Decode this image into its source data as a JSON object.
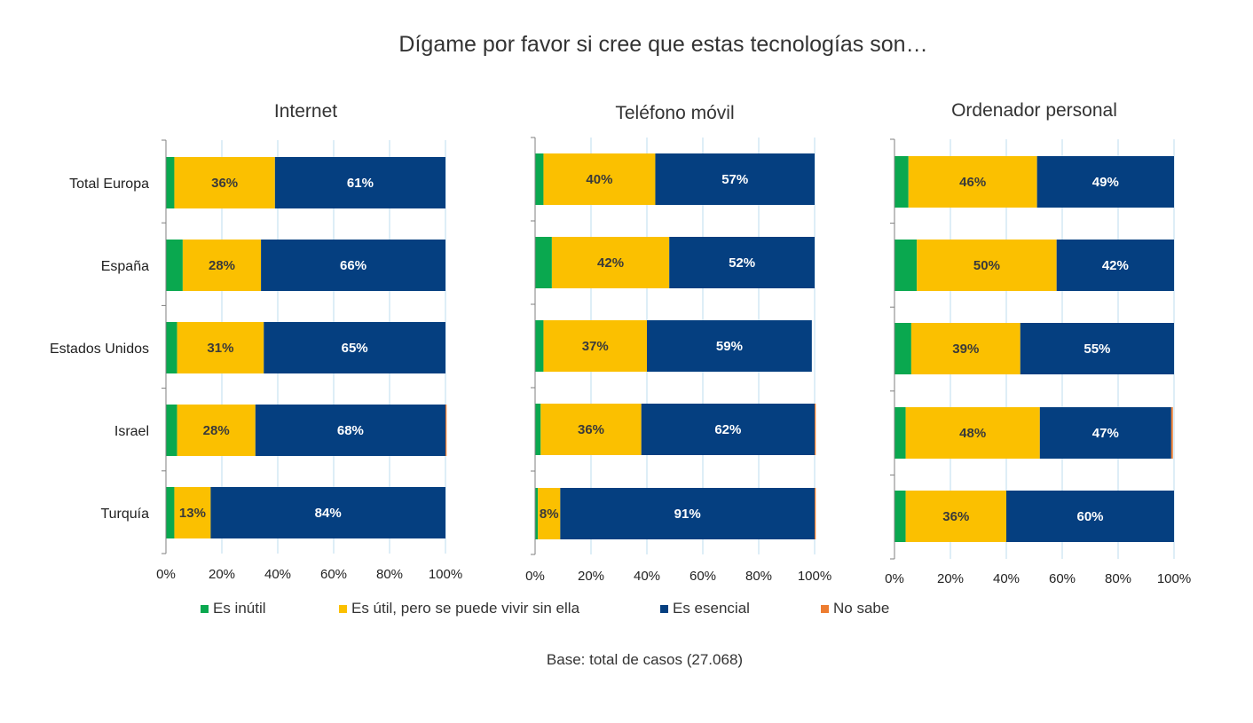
{
  "title": "Dígame por favor si cree que estas tecnologías son…",
  "footnote": "Base: total de casos (27.068)",
  "colors": {
    "inutil": "#0aa84f",
    "util": "#fbc000",
    "esencial": "#053f80",
    "no_sabe": "#ed7d31"
  },
  "legend": [
    {
      "label": "Es inútil",
      "color": "#0aa84f"
    },
    {
      "label": "Es útil, pero se puede vivir sin ella",
      "color": "#fbc000"
    },
    {
      "label": "Es esencial",
      "color": "#053f80"
    },
    {
      "label": "No sabe",
      "color": "#ed7d31"
    }
  ],
  "chart_data": [
    {
      "type": "bar",
      "orientation": "horizontal-stacked-100",
      "title": "Internet",
      "categories": [
        "Total Europa",
        "España",
        "Estados Unidos",
        "Israel",
        "Turquía"
      ],
      "xlim": [
        0,
        100
      ],
      "xticks": [
        "0%",
        "20%",
        "40%",
        "60%",
        "80%",
        "100%"
      ],
      "grid": true,
      "series": [
        {
          "name": "Es inútil",
          "values": [
            3,
            6,
            4,
            4,
            3
          ],
          "labels": [
            "",
            "",
            "",
            "",
            ""
          ]
        },
        {
          "name": "Es útil, pero se puede vivir sin ella",
          "values": [
            36,
            28,
            31,
            28,
            13
          ],
          "labels": [
            "36%",
            "28%",
            "31%",
            "28%",
            "13%"
          ]
        },
        {
          "name": "Es esencial",
          "values": [
            61,
            66,
            65,
            68,
            84
          ],
          "labels": [
            "61%",
            "66%",
            "65%",
            "68%",
            "84%"
          ]
        },
        {
          "name": "No sabe",
          "values": [
            0,
            0,
            0,
            0.4,
            0
          ],
          "labels": [
            "",
            "",
            "",
            "",
            ""
          ]
        }
      ]
    },
    {
      "type": "bar",
      "orientation": "horizontal-stacked-100",
      "title": "Teléfono móvil",
      "categories": [
        "Total Europa",
        "España",
        "Estados Unidos",
        "Israel",
        "Turquía"
      ],
      "xlim": [
        0,
        100
      ],
      "xticks": [
        "0%",
        "20%",
        "40%",
        "60%",
        "80%",
        "100%"
      ],
      "grid": true,
      "series": [
        {
          "name": "Es inútil",
          "values": [
            3,
            6,
            3,
            2,
            1
          ],
          "labels": [
            "",
            "",
            "",
            "",
            ""
          ]
        },
        {
          "name": "Es útil, pero se puede vivir sin ella",
          "values": [
            40,
            42,
            37,
            36,
            8
          ],
          "labels": [
            "40%",
            "42%",
            "37%",
            "36%",
            "8%"
          ]
        },
        {
          "name": "Es esencial",
          "values": [
            57,
            52,
            59,
            62,
            91
          ],
          "labels": [
            "57%",
            "52%",
            "59%",
            "62%",
            "91%"
          ]
        },
        {
          "name": "No sabe",
          "values": [
            0,
            0,
            0,
            0.4,
            0.4
          ],
          "labels": [
            "",
            "",
            "",
            "",
            ""
          ]
        }
      ]
    },
    {
      "type": "bar",
      "orientation": "horizontal-stacked-100",
      "title": "Ordenador personal",
      "categories": [
        "Total Europa",
        "España",
        "Estados Unidos",
        "Israel",
        "Turquía"
      ],
      "xlim": [
        0,
        100
      ],
      "xticks": [
        "0%",
        "20%",
        "40%",
        "60%",
        "80%",
        "100%"
      ],
      "grid": true,
      "series": [
        {
          "name": "Es inútil",
          "values": [
            5,
            8,
            6,
            4,
            4
          ],
          "labels": [
            "",
            "",
            "",
            "",
            ""
          ]
        },
        {
          "name": "Es útil, pero se puede vivir sin ella",
          "values": [
            46,
            50,
            39,
            48,
            36
          ],
          "labels": [
            "46%",
            "50%",
            "39%",
            "48%",
            "36%"
          ]
        },
        {
          "name": "Es esencial",
          "values": [
            49,
            42,
            55,
            47,
            60
          ],
          "labels": [
            "49%",
            "42%",
            "55%",
            "47%",
            "60%"
          ]
        },
        {
          "name": "No sabe",
          "values": [
            0,
            0,
            0,
            0.6,
            0
          ],
          "labels": [
            "",
            "",
            "",
            "",
            ""
          ]
        }
      ]
    }
  ]
}
